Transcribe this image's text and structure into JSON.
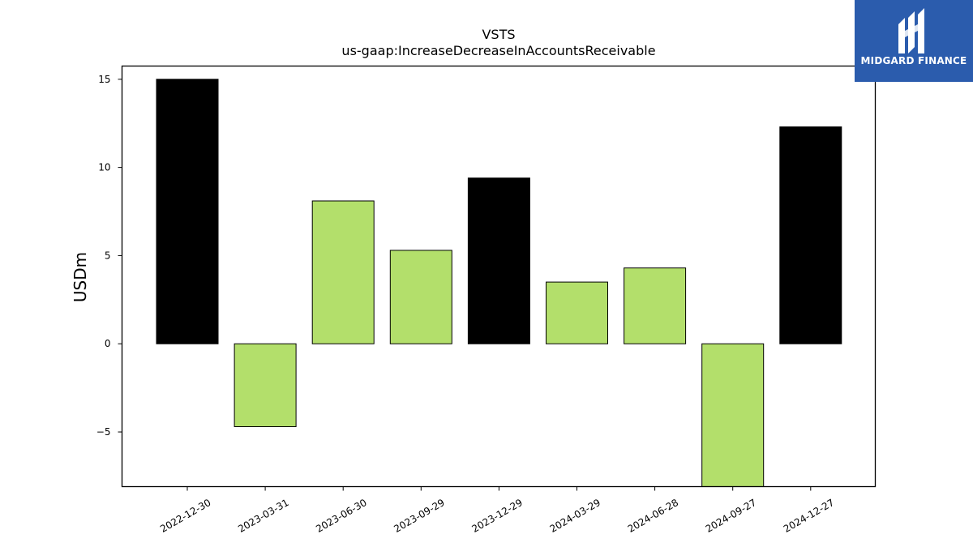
{
  "chart_data": {
    "type": "bar",
    "title": "VSTS",
    "subtitle": "us-gaap:IncreaseDecreaseInAccountsReceivable",
    "xlabel": "",
    "ylabel": "USDm",
    "ylim": [
      -8.1,
      15.75
    ],
    "yticks": [
      -5,
      0,
      5,
      10,
      15
    ],
    "ytick_labels": [
      "−5",
      "0",
      "5",
      "10",
      "15"
    ],
    "grid": false,
    "categories": [
      "2022-12-30",
      "2023-03-31",
      "2023-06-30",
      "2023-09-29",
      "2023-12-29",
      "2024-03-29",
      "2024-06-28",
      "2024-09-27",
      "2024-12-27"
    ],
    "values": [
      15.0,
      -4.7,
      8.1,
      5.3,
      9.4,
      3.5,
      4.3,
      -8.2,
      12.3
    ],
    "bar_colors": [
      "#000000",
      "#b3df6b",
      "#b3df6b",
      "#b3df6b",
      "#000000",
      "#b3df6b",
      "#b3df6b",
      "#b3df6b",
      "#000000"
    ]
  },
  "logo": {
    "text": "MIDGARD FINANCE",
    "color": "#2b5cad"
  }
}
